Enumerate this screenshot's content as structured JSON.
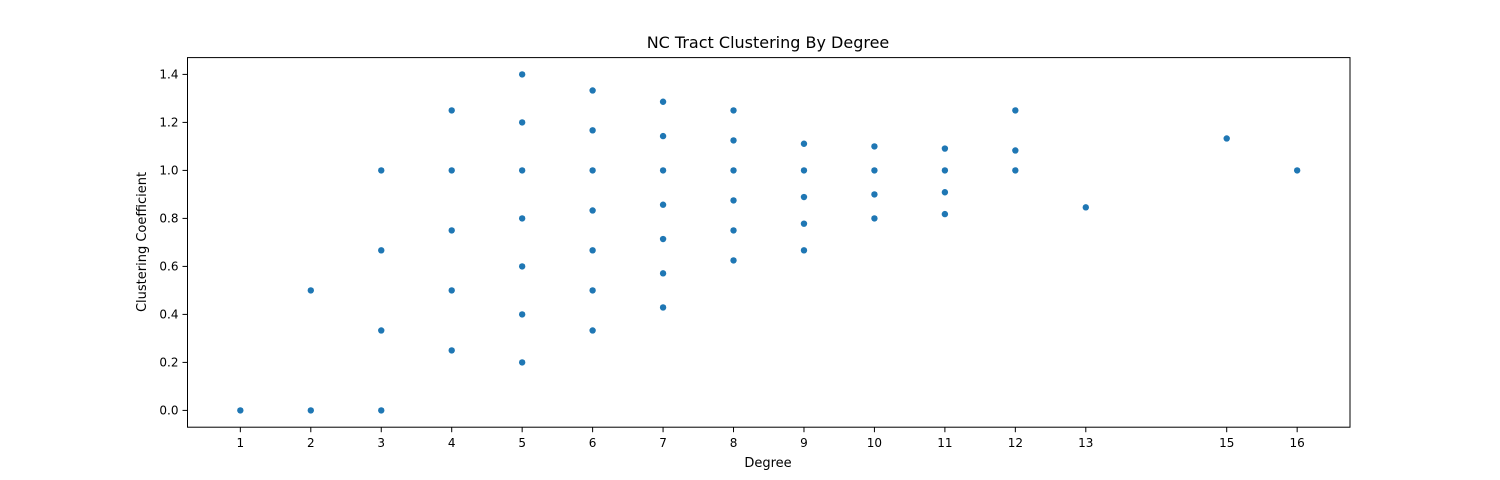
{
  "chart_data": {
    "type": "scatter",
    "title": "NC Tract Clustering By Degree",
    "xlabel": "Degree",
    "ylabel": "Clustering Coefficient",
    "xlim": [
      0.25,
      16.75
    ],
    "ylim": [
      -0.07,
      1.47
    ],
    "xticks": [
      1,
      2,
      3,
      4,
      5,
      6,
      7,
      8,
      9,
      10,
      11,
      12,
      13,
      15,
      16
    ],
    "yticks": [
      "0.0",
      "0.2",
      "0.4",
      "0.6",
      "0.8",
      "1.0",
      "1.2",
      "1.4"
    ],
    "grid": false,
    "color": "#1f77b4",
    "points": [
      [
        1,
        0.0
      ],
      [
        2,
        0.0
      ],
      [
        2,
        0.5
      ],
      [
        3,
        0.0
      ],
      [
        3,
        0.333
      ],
      [
        3,
        0.667
      ],
      [
        3,
        1.0
      ],
      [
        4,
        0.25
      ],
      [
        4,
        0.5
      ],
      [
        4,
        0.75
      ],
      [
        4,
        1.0
      ],
      [
        4,
        1.25
      ],
      [
        5,
        0.2
      ],
      [
        5,
        0.4
      ],
      [
        5,
        0.6
      ],
      [
        5,
        0.8
      ],
      [
        5,
        1.0
      ],
      [
        5,
        1.2
      ],
      [
        5,
        1.4
      ],
      [
        6,
        0.333
      ],
      [
        6,
        0.5
      ],
      [
        6,
        0.667
      ],
      [
        6,
        0.833
      ],
      [
        6,
        1.0
      ],
      [
        6,
        1.167
      ],
      [
        6,
        1.333
      ],
      [
        7,
        0.429
      ],
      [
        7,
        0.571
      ],
      [
        7,
        0.714
      ],
      [
        7,
        0.857
      ],
      [
        7,
        1.0
      ],
      [
        7,
        1.143
      ],
      [
        7,
        1.286
      ],
      [
        8,
        0.625
      ],
      [
        8,
        0.75
      ],
      [
        8,
        0.875
      ],
      [
        8,
        1.0
      ],
      [
        8,
        1.125
      ],
      [
        8,
        1.25
      ],
      [
        9,
        0.667
      ],
      [
        9,
        0.778
      ],
      [
        9,
        0.889
      ],
      [
        9,
        1.0
      ],
      [
        9,
        1.111
      ],
      [
        10,
        0.8
      ],
      [
        10,
        0.9
      ],
      [
        10,
        1.0
      ],
      [
        10,
        1.1
      ],
      [
        11,
        0.818
      ],
      [
        11,
        0.909
      ],
      [
        11,
        1.0
      ],
      [
        11,
        1.091
      ],
      [
        12,
        1.0
      ],
      [
        12,
        1.083
      ],
      [
        12,
        1.25
      ],
      [
        13,
        0.846
      ],
      [
        15,
        1.133
      ],
      [
        16,
        1.0
      ]
    ]
  }
}
